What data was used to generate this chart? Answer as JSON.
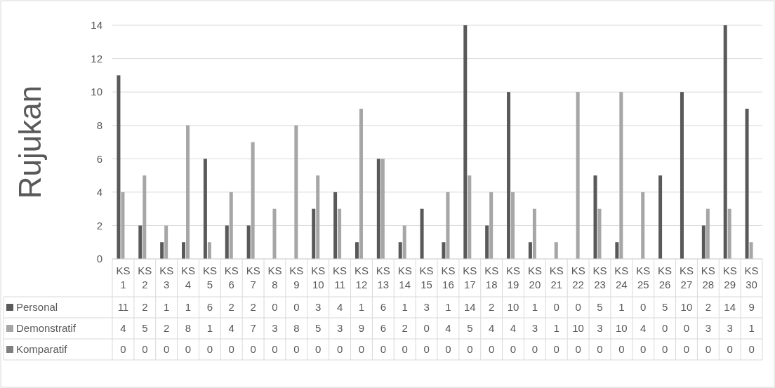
{
  "chart_data": {
    "type": "bar",
    "ylabel": "Rujukan",
    "categories": [
      "KS 1",
      "KS 2",
      "KS 3",
      "KS 4",
      "KS 5",
      "KS 6",
      "KS 7",
      "KS 8",
      "KS 9",
      "KS 10",
      "KS 11",
      "KS 12",
      "KS 13",
      "KS 14",
      "KS 15",
      "KS 16",
      "KS 17",
      "KS 18",
      "KS 19",
      "KS 20",
      "KS 21",
      "KS 22",
      "KS 23",
      "KS 24",
      "KS 25",
      "KS 26",
      "KS 27",
      "KS 28",
      "KS 29",
      "KS 30"
    ],
    "series": [
      {
        "name": "Personal",
        "color": "#595959",
        "values": [
          11,
          2,
          1,
          1,
          6,
          2,
          2,
          0,
          0,
          3,
          4,
          1,
          6,
          1,
          3,
          1,
          14,
          2,
          10,
          1,
          0,
          0,
          5,
          1,
          0,
          5,
          10,
          2,
          14,
          9
        ]
      },
      {
        "name": "Demonstratif",
        "color": "#a6a6a6",
        "values": [
          4,
          5,
          2,
          8,
          1,
          4,
          7,
          3,
          8,
          5,
          3,
          9,
          6,
          2,
          0,
          4,
          5,
          4,
          4,
          3,
          1,
          10,
          3,
          10,
          4,
          0,
          0,
          3,
          3,
          1
        ]
      },
      {
        "name": "Komparatif",
        "color": "#7f7f7f",
        "values": [
          0,
          0,
          0,
          0,
          0,
          0,
          0,
          0,
          0,
          0,
          0,
          0,
          0,
          0,
          0,
          0,
          0,
          0,
          0,
          0,
          0,
          0,
          0,
          0,
          0,
          0,
          0,
          0,
          0,
          0
        ]
      }
    ],
    "ylim": [
      0,
      14
    ],
    "yticks": [
      0,
      2,
      4,
      6,
      8,
      10,
      12,
      14
    ],
    "grid": "y",
    "data_labels": true,
    "legend": "bottom"
  }
}
